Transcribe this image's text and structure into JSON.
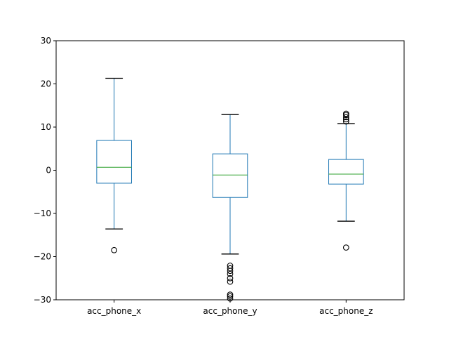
{
  "chart_data": {
    "type": "box",
    "categories": [
      "acc_phone_x",
      "acc_phone_y",
      "acc_phone_z"
    ],
    "ylim": [
      -30,
      30
    ],
    "yticks": [
      -30,
      -20,
      -10,
      0,
      10,
      20,
      30
    ],
    "ytick_labels": [
      "−30",
      "−20",
      "−10",
      "0",
      "10",
      "20",
      "30"
    ],
    "grid": false,
    "colors": {
      "box": "#1f77b4",
      "median": "#2ca02c",
      "whisker_cap": "#000000",
      "outlier": "#000000"
    },
    "boxes": [
      {
        "name": "acc_phone_x",
        "whisker_low": -13.6,
        "q1": -3.0,
        "median": 0.7,
        "q3": 6.9,
        "whisker_high": 21.3,
        "outliers": [
          -18.5
        ]
      },
      {
        "name": "acc_phone_y",
        "whisker_low": -19.4,
        "q1": -6.3,
        "median": -1.1,
        "q3": 3.8,
        "whisker_high": 12.9,
        "outliers": [
          -22.1,
          -22.7,
          -23.3,
          -24.0,
          -25.0,
          -25.8,
          -28.8,
          -29.2,
          -29.7
        ]
      },
      {
        "name": "acc_phone_z",
        "whisker_low": -11.8,
        "q1": -3.2,
        "median": -0.9,
        "q3": 2.5,
        "whisker_high": 10.8,
        "outliers": [
          -17.9,
          11.3,
          11.8,
          12.3,
          12.8,
          13.1
        ]
      }
    ]
  }
}
